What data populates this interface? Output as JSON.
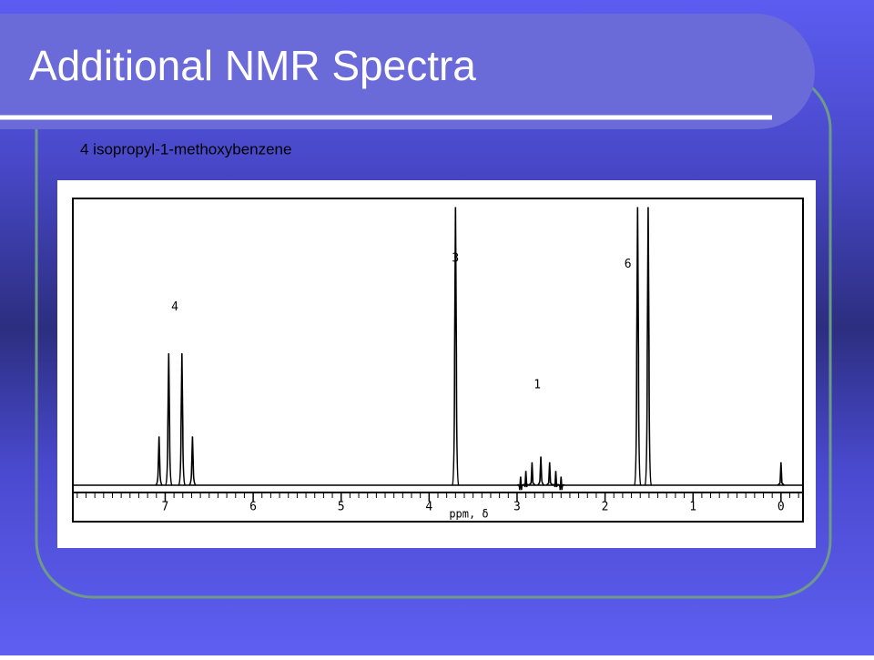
{
  "title": "Additional NMR Spectra",
  "subtitle": "4 isopropyl-1-methoxybenzene",
  "chart_data": {
    "type": "spectrum",
    "x_label": "ppm, δ",
    "xlim": [
      8.05,
      -0.25
    ],
    "xticks": [
      0,
      1,
      2,
      3,
      4,
      5,
      6,
      7
    ],
    "ylim": [
      0,
      100
    ],
    "color": "#000000",
    "peaks": {
      "x": [
        7.07,
        6.96,
        6.81,
        6.69,
        3.7,
        2.96,
        2.9,
        2.83,
        2.73,
        2.63,
        2.56,
        2.5,
        1.63,
        1.51,
        0.0
      ],
      "values": [
        17,
        46,
        46,
        17,
        97,
        3,
        5,
        8,
        10,
        8,
        5,
        3,
        97,
        97,
        8
      ]
    },
    "annotations": [
      {
        "text": "4",
        "x": 6.89,
        "y": 62
      },
      {
        "text": "3",
        "x": 3.7,
        "y": 79
      },
      {
        "text": "1",
        "x": 2.77,
        "y": 35
      },
      {
        "text": "6",
        "x": 1.74,
        "y": 77
      }
    ]
  }
}
